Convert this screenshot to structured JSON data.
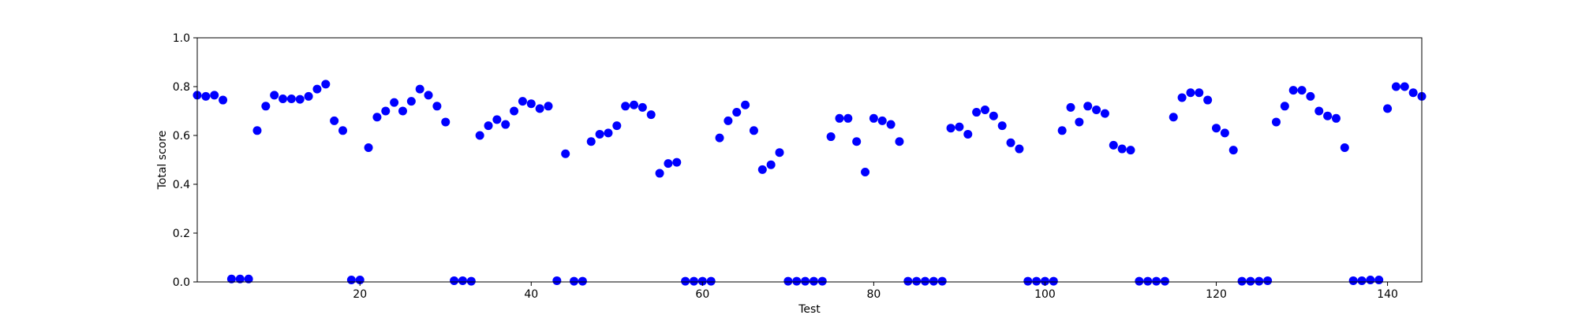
{
  "chart_data": {
    "type": "scatter",
    "title": "",
    "xlabel": "Test",
    "ylabel": "Total score",
    "xlim": [
      1,
      144
    ],
    "ylim": [
      0.0,
      1.0
    ],
    "grid": false,
    "marker_color": "#0000ff",
    "x_ticks": [
      20,
      40,
      60,
      80,
      100,
      120,
      140
    ],
    "x_tick_labels": [
      "20",
      "40",
      "60",
      "80",
      "100",
      "120",
      "140"
    ],
    "y_ticks": [
      0.0,
      0.2,
      0.4,
      0.6,
      0.8,
      1.0
    ],
    "y_tick_labels": [
      "0.0",
      "0.2",
      "0.4",
      "0.6",
      "0.8",
      "1.0"
    ],
    "series": [
      {
        "name": "Total score",
        "x": [
          1,
          2,
          3,
          4,
          5,
          6,
          7,
          8,
          9,
          10,
          11,
          12,
          13,
          14,
          15,
          16,
          17,
          18,
          19,
          20,
          21,
          22,
          23,
          24,
          25,
          26,
          27,
          28,
          29,
          30,
          31,
          32,
          33,
          34,
          35,
          36,
          37,
          38,
          39,
          40,
          41,
          42,
          43,
          44,
          45,
          46,
          47,
          48,
          49,
          50,
          51,
          52,
          53,
          54,
          55,
          56,
          57,
          58,
          59,
          60,
          61,
          62,
          63,
          64,
          65,
          66,
          67,
          68,
          69,
          70,
          71,
          72,
          73,
          74,
          75,
          76,
          77,
          78,
          79,
          80,
          81,
          82,
          83,
          84,
          85,
          86,
          87,
          88,
          89,
          90,
          91,
          92,
          93,
          94,
          95,
          96,
          97,
          98,
          99,
          100,
          101,
          102,
          103,
          104,
          105,
          106,
          107,
          108,
          109,
          110,
          111,
          112,
          113,
          114,
          115,
          116,
          117,
          118,
          119,
          120,
          121,
          122,
          123,
          124,
          125,
          126,
          127,
          128,
          129,
          130,
          131,
          132,
          133,
          134,
          135,
          136,
          137,
          138,
          139,
          140,
          141,
          142,
          143,
          144
        ],
        "y": [
          0.765,
          0.76,
          0.765,
          0.745,
          0.012,
          0.012,
          0.012,
          0.62,
          0.72,
          0.765,
          0.75,
          0.75,
          0.748,
          0.76,
          0.79,
          0.81,
          0.66,
          0.62,
          0.008,
          0.008,
          0.55,
          0.675,
          0.7,
          0.735,
          0.7,
          0.74,
          0.79,
          0.765,
          0.72,
          0.655,
          0.005,
          0.005,
          0.003,
          0.6,
          0.64,
          0.665,
          0.645,
          0.7,
          0.74,
          0.73,
          0.71,
          0.72,
          0.005,
          0.525,
          0.003,
          0.003,
          0.575,
          0.605,
          0.61,
          0.64,
          0.72,
          0.725,
          0.715,
          0.685,
          0.445,
          0.485,
          0.49,
          0.003,
          0.003,
          0.003,
          0.003,
          0.59,
          0.66,
          0.695,
          0.725,
          0.62,
          0.46,
          0.48,
          0.53,
          0.003,
          0.003,
          0.003,
          0.003,
          0.003,
          0.595,
          0.67,
          0.67,
          0.575,
          0.45,
          0.67,
          0.66,
          0.645,
          0.575,
          0.003,
          0.003,
          0.003,
          0.003,
          0.003,
          0.63,
          0.635,
          0.605,
          0.695,
          0.705,
          0.68,
          0.64,
          0.57,
          0.545,
          0.003,
          0.003,
          0.003,
          0.003,
          0.62,
          0.715,
          0.655,
          0.72,
          0.705,
          0.69,
          0.56,
          0.545,
          0.54,
          0.003,
          0.003,
          0.003,
          0.003,
          0.675,
          0.755,
          0.775,
          0.775,
          0.745,
          0.63,
          0.61,
          0.54,
          0.003,
          0.003,
          0.003,
          0.005,
          0.655,
          0.72,
          0.785,
          0.785,
          0.76,
          0.7,
          0.68,
          0.67,
          0.55,
          0.005,
          0.005,
          0.008,
          0.008,
          0.71,
          0.8,
          0.8,
          0.775,
          0.76
        ]
      }
    ]
  }
}
